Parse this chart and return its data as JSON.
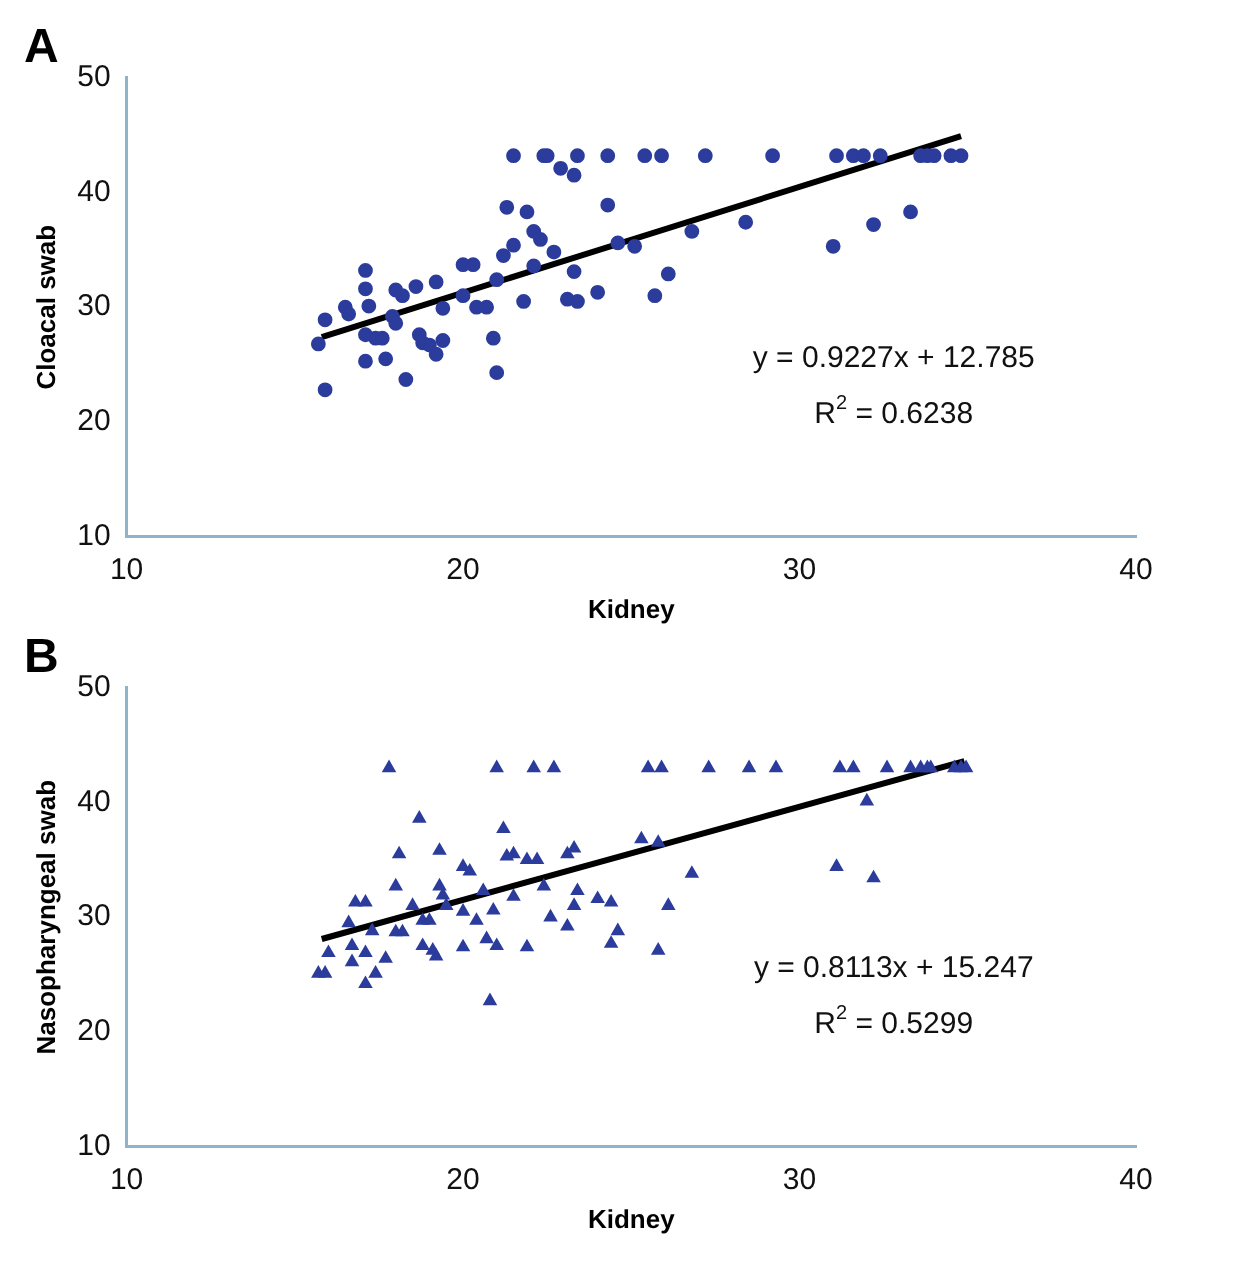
{
  "chart_data": [
    {
      "type": "scatter",
      "title": "A",
      "xlabel": "Kidney",
      "ylabel": "Cloacal swab",
      "xlim": [
        10,
        40
      ],
      "ylim": [
        10,
        50
      ],
      "xticks": [
        10,
        20,
        30,
        40
      ],
      "yticks": [
        10,
        20,
        30,
        40,
        50
      ],
      "annotations": [
        "y = 0.9227x + 12.785",
        "R$^{2}$ = 0.6238"
      ],
      "series": [
        {
          "marker": "circle",
          "color": "#2b3c9c",
          "x": [
            21.5,
            22.4,
            22.5,
            23.4,
            24.3,
            25.4,
            25.9,
            27.2,
            29.2,
            31.1,
            31.6,
            31.9,
            32.4,
            33.6,
            33.8,
            34.0,
            34.5,
            34.8,
            15.7,
            15.9,
            15.9,
            16.5,
            16.6,
            17.1,
            17.1,
            17.1,
            17.1,
            17.2,
            17.4,
            17.6,
            17.7,
            17.9,
            18.0,
            18.0,
            18.2,
            18.3,
            18.6,
            18.7,
            18.8,
            19.0,
            19.2,
            19.2,
            19.4,
            19.4,
            20.0,
            20.0,
            20.3,
            20.4,
            20.7,
            20.9,
            21.0,
            21.0,
            21.2,
            21.3,
            21.5,
            21.8,
            21.9,
            22.1,
            22.3,
            22.1,
            22.7,
            22.9,
            23.3,
            23.3,
            23.1,
            23.4,
            24.0,
            24.3,
            24.6,
            25.1,
            25.7,
            26.1,
            26.8,
            28.4,
            31.0,
            32.2,
            33.3
          ],
          "values": [
            43.2,
            43.2,
            43.2,
            43.2,
            43.2,
            43.2,
            43.2,
            43.2,
            43.2,
            43.2,
            43.2,
            43.2,
            43.2,
            43.2,
            43.2,
            43.2,
            43.2,
            43.2,
            26.8,
            22.8,
            28.9,
            30,
            29.4,
            33.2,
            31.6,
            27.6,
            25.3,
            30.1,
            27.3,
            27.3,
            25.5,
            29.2,
            28.6,
            31.5,
            31,
            23.7,
            31.8,
            27.6,
            26.9,
            26.7,
            32.2,
            25.9,
            29.9,
            27.1,
            33.7,
            31,
            33.7,
            30,
            30,
            27.3,
            24.3,
            32.4,
            34.5,
            38.7,
            35.4,
            30.5,
            38.3,
            36.6,
            35.9,
            33.6,
            34.8,
            42.1,
            41.5,
            33.1,
            30.7,
            30.5,
            31.3,
            38.9,
            35.6,
            35.3,
            31,
            32.9,
            36.6,
            37.4,
            35.3,
            37.2,
            38.3
          ]
        },
        {
          "type": "line",
          "marker": "none",
          "color": "#000000",
          "x": [
            15.8,
            34.8
          ],
          "values": [
            27.4,
            44.9
          ]
        }
      ]
    },
    {
      "type": "scatter",
      "title": "B",
      "xlabel": "Kidney",
      "ylabel": "Nasopharyngeal swab",
      "xlim": [
        10,
        40
      ],
      "ylim": [
        10,
        50
      ],
      "xticks": [
        10,
        20,
        30,
        40
      ],
      "yticks": [
        10,
        20,
        30,
        40,
        50
      ],
      "annotations": [
        "y = 0.8113x + 15.247",
        "R$^{2}$ = 0.5299"
      ],
      "series": [
        {
          "marker": "triangle",
          "color": "#2b3c9c",
          "x": [
            17.8,
            21.0,
            22.1,
            22.7,
            25.5,
            25.9,
            27.3,
            28.5,
            29.3,
            31.2,
            31.6,
            32.6,
            33.3,
            33.6,
            33.8,
            33.9,
            34.6,
            34.8,
            34.95,
            15.7,
            15.9,
            16.0,
            16.6,
            16.7,
            16.7,
            16.8,
            17.1,
            17.1,
            17.1,
            17.3,
            17.4,
            17.7,
            18.0,
            18.1,
            18.0,
            18.2,
            18.5,
            18.7,
            18.8,
            18.8,
            19.0,
            19.1,
            19.2,
            19.3,
            19.3,
            19.4,
            19.5,
            20.0,
            20.0,
            20.0,
            20.2,
            20.4,
            20.6,
            20.7,
            20.8,
            20.9,
            21.0,
            21.2,
            21.3,
            21.5,
            21.5,
            21.9,
            21.9,
            22.2,
            22.4,
            22.6,
            23.1,
            23.1,
            23.3,
            23.3,
            23.4,
            24.0,
            24.4,
            24.4,
            24.6,
            25.3,
            25.8,
            25.8,
            26.1,
            26.8,
            31.1,
            32.0,
            32.2
          ],
          "values": [
            43,
            43,
            43,
            43,
            43,
            43,
            43,
            43,
            43,
            43,
            43,
            43,
            43,
            43,
            43,
            43,
            43,
            43,
            43,
            25.1,
            25.1,
            26.9,
            29.5,
            27.5,
            26.1,
            31.3,
            31.3,
            26.9,
            24.2,
            28.8,
            25.1,
            26.4,
            32.7,
            35.5,
            28.7,
            28.7,
            31,
            38.6,
            27.5,
            29.7,
            29.7,
            27.1,
            26.6,
            35.8,
            32.7,
            31.9,
            31,
            34.4,
            30.5,
            27.4,
            34,
            29.7,
            32.3,
            28.1,
            22.7,
            30.6,
            27.5,
            37.7,
            35.3,
            35.5,
            31.8,
            27.4,
            35,
            35,
            32.7,
            30,
            35.5,
            29.2,
            31,
            36,
            32.3,
            31.6,
            31.3,
            27.7,
            28.8,
            36.8,
            36.5,
            27.1,
            31,
            33.8,
            34.4,
            40.1,
            33.4
          ]
        },
        {
          "type": "line",
          "marker": "none",
          "color": "#000000",
          "x": [
            15.8,
            34.9
          ],
          "values": [
            28.1,
            43.6
          ]
        }
      ]
    }
  ]
}
